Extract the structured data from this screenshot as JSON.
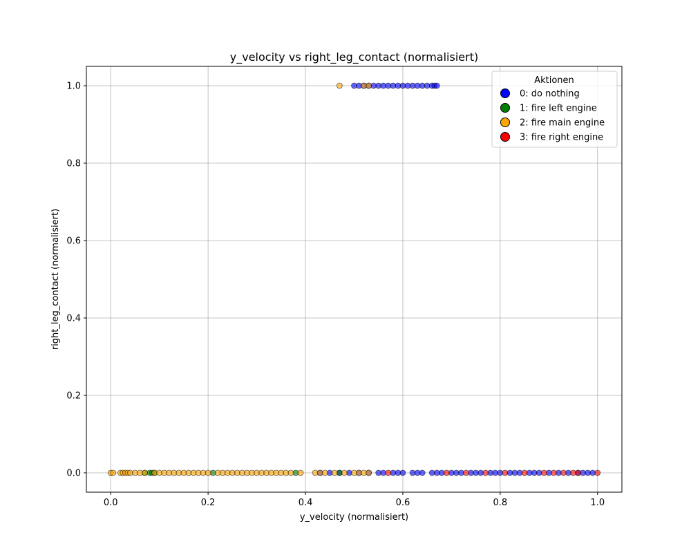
{
  "chart_data": {
    "type": "scatter",
    "title": "y_velocity vs right_leg_contact (normalisiert)",
    "xlabel": "y_velocity (normalisiert)",
    "ylabel": "right_leg_contact (normalisiert)",
    "xlim": [
      -0.05,
      1.05
    ],
    "ylim": [
      -0.05,
      1.05
    ],
    "xticks": [
      0.0,
      0.2,
      0.4,
      0.6,
      0.8,
      1.0
    ],
    "yticks": [
      0.0,
      0.2,
      0.4,
      0.6,
      0.8,
      1.0
    ],
    "xtick_labels": [
      "0.0",
      "0.2",
      "0.4",
      "0.6",
      "0.8",
      "1.0"
    ],
    "ytick_labels": [
      "0.0",
      "0.2",
      "0.4",
      "0.6",
      "0.8",
      "1.0"
    ],
    "grid": true,
    "legend": {
      "title": "Aktionen",
      "position": "top-right",
      "entries": [
        "0: do nothing",
        "1: fire left engine",
        "2: fire main engine",
        "3: fire right engine"
      ]
    },
    "series": [
      {
        "name": "0: do nothing",
        "color": "#0000ff",
        "points": [
          [
            0.5,
            1
          ],
          [
            0.51,
            1
          ],
          [
            0.52,
            1
          ],
          [
            0.53,
            1
          ],
          [
            0.54,
            1
          ],
          [
            0.55,
            1
          ],
          [
            0.56,
            1
          ],
          [
            0.57,
            1
          ],
          [
            0.58,
            1
          ],
          [
            0.59,
            1
          ],
          [
            0.6,
            1
          ],
          [
            0.61,
            1
          ],
          [
            0.62,
            1
          ],
          [
            0.63,
            1
          ],
          [
            0.64,
            1
          ],
          [
            0.65,
            1
          ],
          [
            0.66,
            1
          ],
          [
            0.665,
            1
          ],
          [
            0.67,
            1
          ],
          [
            0.43,
            0
          ],
          [
            0.45,
            0
          ],
          [
            0.47,
            0
          ],
          [
            0.49,
            0
          ],
          [
            0.51,
            0
          ],
          [
            0.53,
            0
          ],
          [
            0.55,
            0
          ],
          [
            0.56,
            0
          ],
          [
            0.58,
            0
          ],
          [
            0.59,
            0
          ],
          [
            0.6,
            0
          ],
          [
            0.62,
            0
          ],
          [
            0.63,
            0
          ],
          [
            0.64,
            0
          ],
          [
            0.66,
            0
          ],
          [
            0.67,
            0
          ],
          [
            0.68,
            0
          ],
          [
            0.7,
            0
          ],
          [
            0.71,
            0
          ],
          [
            0.72,
            0
          ],
          [
            0.74,
            0
          ],
          [
            0.75,
            0
          ],
          [
            0.76,
            0
          ],
          [
            0.78,
            0
          ],
          [
            0.79,
            0
          ],
          [
            0.8,
            0
          ],
          [
            0.82,
            0
          ],
          [
            0.83,
            0
          ],
          [
            0.84,
            0
          ],
          [
            0.86,
            0
          ],
          [
            0.87,
            0
          ],
          [
            0.88,
            0
          ],
          [
            0.9,
            0
          ],
          [
            0.92,
            0
          ],
          [
            0.94,
            0
          ],
          [
            0.96,
            0
          ],
          [
            0.97,
            0
          ],
          [
            0.98,
            0
          ],
          [
            0.99,
            0
          ]
        ]
      },
      {
        "name": "1: fire left engine",
        "color": "#008000",
        "points": [
          [
            0.08,
            0
          ],
          [
            0.085,
            0
          ],
          [
            0.09,
            0
          ],
          [
            0.07,
            0
          ],
          [
            0.21,
            0
          ],
          [
            0.38,
            0
          ],
          [
            0.47,
            0
          ]
        ]
      },
      {
        "name": "2: fire main engine",
        "color": "#ffa500",
        "points": [
          [
            0.47,
            1
          ],
          [
            0.52,
            1
          ],
          [
            0.53,
            1
          ],
          [
            0.0,
            0
          ],
          [
            0.005,
            0
          ],
          [
            0.02,
            0
          ],
          [
            0.025,
            0
          ],
          [
            0.03,
            0
          ],
          [
            0.035,
            0
          ],
          [
            0.04,
            0
          ],
          [
            0.05,
            0
          ],
          [
            0.06,
            0
          ],
          [
            0.07,
            0
          ],
          [
            0.09,
            0
          ],
          [
            0.1,
            0
          ],
          [
            0.11,
            0
          ],
          [
            0.12,
            0
          ],
          [
            0.13,
            0
          ],
          [
            0.14,
            0
          ],
          [
            0.15,
            0
          ],
          [
            0.16,
            0
          ],
          [
            0.17,
            0
          ],
          [
            0.18,
            0
          ],
          [
            0.19,
            0
          ],
          [
            0.2,
            0
          ],
          [
            0.22,
            0
          ],
          [
            0.23,
            0
          ],
          [
            0.24,
            0
          ],
          [
            0.25,
            0
          ],
          [
            0.26,
            0
          ],
          [
            0.27,
            0
          ],
          [
            0.28,
            0
          ],
          [
            0.29,
            0
          ],
          [
            0.3,
            0
          ],
          [
            0.31,
            0
          ],
          [
            0.32,
            0
          ],
          [
            0.33,
            0
          ],
          [
            0.34,
            0
          ],
          [
            0.35,
            0
          ],
          [
            0.36,
            0
          ],
          [
            0.37,
            0
          ],
          [
            0.39,
            0
          ],
          [
            0.42,
            0
          ],
          [
            0.43,
            0
          ],
          [
            0.44,
            0
          ],
          [
            0.46,
            0
          ],
          [
            0.48,
            0
          ],
          [
            0.5,
            0
          ],
          [
            0.51,
            0
          ],
          [
            0.52,
            0
          ],
          [
            0.53,
            0
          ]
        ]
      },
      {
        "name": "3: fire right engine",
        "color": "#ff0000",
        "points": [
          [
            0.57,
            0
          ],
          [
            0.69,
            0
          ],
          [
            0.73,
            0
          ],
          [
            0.77,
            0
          ],
          [
            0.81,
            0
          ],
          [
            0.85,
            0
          ],
          [
            0.89,
            0
          ],
          [
            0.91,
            0
          ],
          [
            0.93,
            0
          ],
          [
            0.95,
            0
          ],
          [
            0.96,
            0
          ],
          [
            1.0,
            0
          ]
        ]
      }
    ]
  }
}
